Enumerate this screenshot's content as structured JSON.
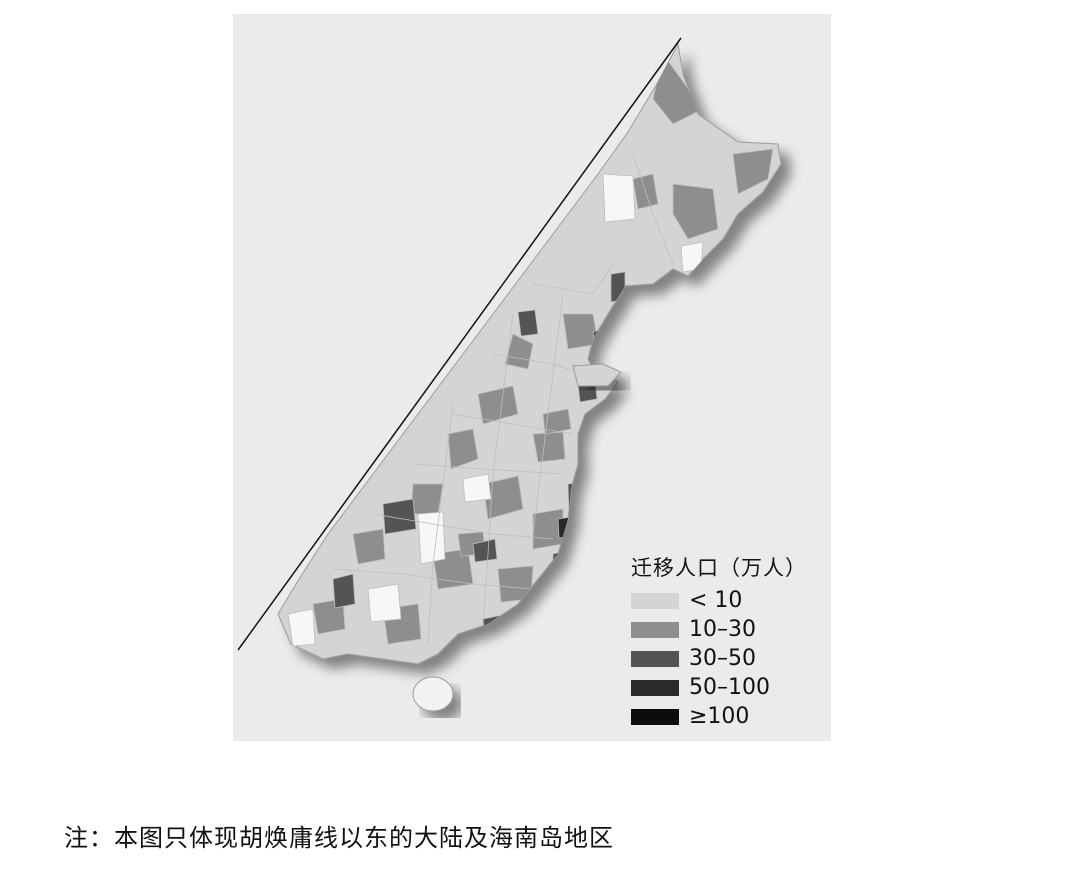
{
  "legend": {
    "title": "迁移人口（万人）",
    "items": [
      {
        "label": "< 10",
        "color": "#d4d4d4"
      },
      {
        "label": "10–30",
        "color": "#8e8e8e"
      },
      {
        "label": "30–50",
        "color": "#545454"
      },
      {
        "label": "50–100",
        "color": "#2a2a2a"
      },
      {
        "label": "≥100",
        "color": "#0d0d0d"
      }
    ]
  },
  "caption": "注：本图只体现胡焕庸线以东的大陆及海南岛地区",
  "map": {
    "boundary_line": "胡焕庸线",
    "background_color": "#ebebeb",
    "land_color": "#d4d4d4"
  }
}
